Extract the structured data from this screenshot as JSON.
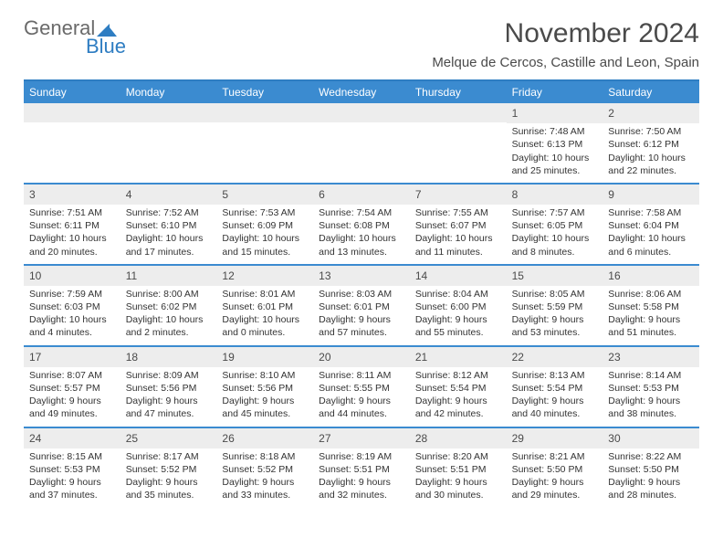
{
  "logo": {
    "word1": "General",
    "word2": "Blue"
  },
  "header": {
    "title": "November 2024",
    "subtitle": "Melque de Cercos, Castille and Leon, Spain"
  },
  "colors": {
    "accent": "#3b8bd0",
    "accent_border": "#2e7dc2",
    "day_num_bg": "#ededed",
    "text": "#333333",
    "title_text": "#4a4a4a",
    "logo_gray": "#6a6a6a",
    "logo_blue": "#2e7dc2",
    "background": "#ffffff"
  },
  "typography": {
    "title_fontsize": 30,
    "subtitle_fontsize": 15,
    "dayheader_fontsize": 12,
    "daynum_fontsize": 12,
    "body_fontsize": 10.5,
    "font_family": "Arial"
  },
  "layout": {
    "columns": 7,
    "rows": 5,
    "border_bottom_width": 2
  },
  "day_names": [
    "Sunday",
    "Monday",
    "Tuesday",
    "Wednesday",
    "Thursday",
    "Friday",
    "Saturday"
  ],
  "weeks": [
    [
      {
        "num": "",
        "empty": true
      },
      {
        "num": "",
        "empty": true
      },
      {
        "num": "",
        "empty": true
      },
      {
        "num": "",
        "empty": true
      },
      {
        "num": "",
        "empty": true
      },
      {
        "num": "1",
        "sunrise": "Sunrise: 7:48 AM",
        "sunset": "Sunset: 6:13 PM",
        "daylight1": "Daylight: 10 hours",
        "daylight2": "and 25 minutes."
      },
      {
        "num": "2",
        "sunrise": "Sunrise: 7:50 AM",
        "sunset": "Sunset: 6:12 PM",
        "daylight1": "Daylight: 10 hours",
        "daylight2": "and 22 minutes."
      }
    ],
    [
      {
        "num": "3",
        "sunrise": "Sunrise: 7:51 AM",
        "sunset": "Sunset: 6:11 PM",
        "daylight1": "Daylight: 10 hours",
        "daylight2": "and 20 minutes."
      },
      {
        "num": "4",
        "sunrise": "Sunrise: 7:52 AM",
        "sunset": "Sunset: 6:10 PM",
        "daylight1": "Daylight: 10 hours",
        "daylight2": "and 17 minutes."
      },
      {
        "num": "5",
        "sunrise": "Sunrise: 7:53 AM",
        "sunset": "Sunset: 6:09 PM",
        "daylight1": "Daylight: 10 hours",
        "daylight2": "and 15 minutes."
      },
      {
        "num": "6",
        "sunrise": "Sunrise: 7:54 AM",
        "sunset": "Sunset: 6:08 PM",
        "daylight1": "Daylight: 10 hours",
        "daylight2": "and 13 minutes."
      },
      {
        "num": "7",
        "sunrise": "Sunrise: 7:55 AM",
        "sunset": "Sunset: 6:07 PM",
        "daylight1": "Daylight: 10 hours",
        "daylight2": "and 11 minutes."
      },
      {
        "num": "8",
        "sunrise": "Sunrise: 7:57 AM",
        "sunset": "Sunset: 6:05 PM",
        "daylight1": "Daylight: 10 hours",
        "daylight2": "and 8 minutes."
      },
      {
        "num": "9",
        "sunrise": "Sunrise: 7:58 AM",
        "sunset": "Sunset: 6:04 PM",
        "daylight1": "Daylight: 10 hours",
        "daylight2": "and 6 minutes."
      }
    ],
    [
      {
        "num": "10",
        "sunrise": "Sunrise: 7:59 AM",
        "sunset": "Sunset: 6:03 PM",
        "daylight1": "Daylight: 10 hours",
        "daylight2": "and 4 minutes."
      },
      {
        "num": "11",
        "sunrise": "Sunrise: 8:00 AM",
        "sunset": "Sunset: 6:02 PM",
        "daylight1": "Daylight: 10 hours",
        "daylight2": "and 2 minutes."
      },
      {
        "num": "12",
        "sunrise": "Sunrise: 8:01 AM",
        "sunset": "Sunset: 6:01 PM",
        "daylight1": "Daylight: 10 hours",
        "daylight2": "and 0 minutes."
      },
      {
        "num": "13",
        "sunrise": "Sunrise: 8:03 AM",
        "sunset": "Sunset: 6:01 PM",
        "daylight1": "Daylight: 9 hours",
        "daylight2": "and 57 minutes."
      },
      {
        "num": "14",
        "sunrise": "Sunrise: 8:04 AM",
        "sunset": "Sunset: 6:00 PM",
        "daylight1": "Daylight: 9 hours",
        "daylight2": "and 55 minutes."
      },
      {
        "num": "15",
        "sunrise": "Sunrise: 8:05 AM",
        "sunset": "Sunset: 5:59 PM",
        "daylight1": "Daylight: 9 hours",
        "daylight2": "and 53 minutes."
      },
      {
        "num": "16",
        "sunrise": "Sunrise: 8:06 AM",
        "sunset": "Sunset: 5:58 PM",
        "daylight1": "Daylight: 9 hours",
        "daylight2": "and 51 minutes."
      }
    ],
    [
      {
        "num": "17",
        "sunrise": "Sunrise: 8:07 AM",
        "sunset": "Sunset: 5:57 PM",
        "daylight1": "Daylight: 9 hours",
        "daylight2": "and 49 minutes."
      },
      {
        "num": "18",
        "sunrise": "Sunrise: 8:09 AM",
        "sunset": "Sunset: 5:56 PM",
        "daylight1": "Daylight: 9 hours",
        "daylight2": "and 47 minutes."
      },
      {
        "num": "19",
        "sunrise": "Sunrise: 8:10 AM",
        "sunset": "Sunset: 5:56 PM",
        "daylight1": "Daylight: 9 hours",
        "daylight2": "and 45 minutes."
      },
      {
        "num": "20",
        "sunrise": "Sunrise: 8:11 AM",
        "sunset": "Sunset: 5:55 PM",
        "daylight1": "Daylight: 9 hours",
        "daylight2": "and 44 minutes."
      },
      {
        "num": "21",
        "sunrise": "Sunrise: 8:12 AM",
        "sunset": "Sunset: 5:54 PM",
        "daylight1": "Daylight: 9 hours",
        "daylight2": "and 42 minutes."
      },
      {
        "num": "22",
        "sunrise": "Sunrise: 8:13 AM",
        "sunset": "Sunset: 5:54 PM",
        "daylight1": "Daylight: 9 hours",
        "daylight2": "and 40 minutes."
      },
      {
        "num": "23",
        "sunrise": "Sunrise: 8:14 AM",
        "sunset": "Sunset: 5:53 PM",
        "daylight1": "Daylight: 9 hours",
        "daylight2": "and 38 minutes."
      }
    ],
    [
      {
        "num": "24",
        "sunrise": "Sunrise: 8:15 AM",
        "sunset": "Sunset: 5:53 PM",
        "daylight1": "Daylight: 9 hours",
        "daylight2": "and 37 minutes."
      },
      {
        "num": "25",
        "sunrise": "Sunrise: 8:17 AM",
        "sunset": "Sunset: 5:52 PM",
        "daylight1": "Daylight: 9 hours",
        "daylight2": "and 35 minutes."
      },
      {
        "num": "26",
        "sunrise": "Sunrise: 8:18 AM",
        "sunset": "Sunset: 5:52 PM",
        "daylight1": "Daylight: 9 hours",
        "daylight2": "and 33 minutes."
      },
      {
        "num": "27",
        "sunrise": "Sunrise: 8:19 AM",
        "sunset": "Sunset: 5:51 PM",
        "daylight1": "Daylight: 9 hours",
        "daylight2": "and 32 minutes."
      },
      {
        "num": "28",
        "sunrise": "Sunrise: 8:20 AM",
        "sunset": "Sunset: 5:51 PM",
        "daylight1": "Daylight: 9 hours",
        "daylight2": "and 30 minutes."
      },
      {
        "num": "29",
        "sunrise": "Sunrise: 8:21 AM",
        "sunset": "Sunset: 5:50 PM",
        "daylight1": "Daylight: 9 hours",
        "daylight2": "and 29 minutes."
      },
      {
        "num": "30",
        "sunrise": "Sunrise: 8:22 AM",
        "sunset": "Sunset: 5:50 PM",
        "daylight1": "Daylight: 9 hours",
        "daylight2": "and 28 minutes."
      }
    ]
  ]
}
